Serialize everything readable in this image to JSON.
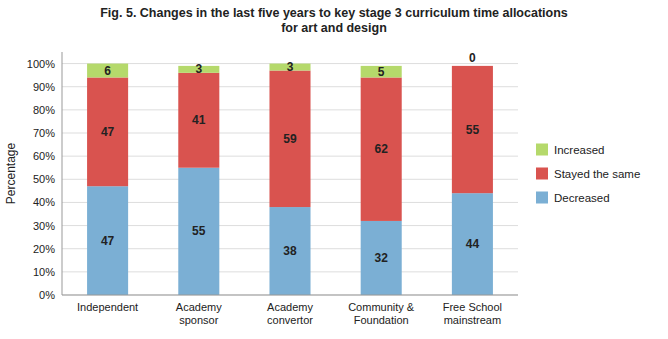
{
  "chart_data": {
    "type": "bar",
    "stacked": true,
    "title": "Fig. 5. Changes in the last five years to key stage 3 curriculum time allocations\nfor art and design",
    "categories": [
      "Independent",
      "Academy\nsponsor",
      "Academy\nconvertor",
      "Community &\nFoundation",
      "Free School\nmainstream"
    ],
    "series": [
      {
        "name": "Decreased",
        "color": "#7bafd4",
        "values": [
          47,
          55,
          38,
          32,
          44
        ]
      },
      {
        "name": "Stayed the same",
        "color": "#d9534f",
        "values": [
          47,
          41,
          59,
          62,
          55
        ]
      },
      {
        "name": "Increased",
        "color": "#b5d96b",
        "values": [
          6,
          3,
          3,
          5,
          0
        ]
      }
    ],
    "y_label": "Percentage",
    "ylim": [
      0,
      105
    ],
    "yticks": [
      {
        "value": 0,
        "label": "0%"
      },
      {
        "value": 10,
        "label": "10%"
      },
      {
        "value": 20,
        "label": "20%"
      },
      {
        "value": 30,
        "label": "30%"
      },
      {
        "value": 40,
        "label": "40%"
      },
      {
        "value": 50,
        "label": "50%"
      },
      {
        "value": 60,
        "label": "60%"
      },
      {
        "value": 70,
        "label": "70%"
      },
      {
        "value": 80,
        "label": "80%"
      },
      {
        "value": 90,
        "label": "90%"
      },
      {
        "value": 100,
        "label": "100%"
      }
    ],
    "grid": true,
    "legend": "right",
    "data_labels": true
  }
}
